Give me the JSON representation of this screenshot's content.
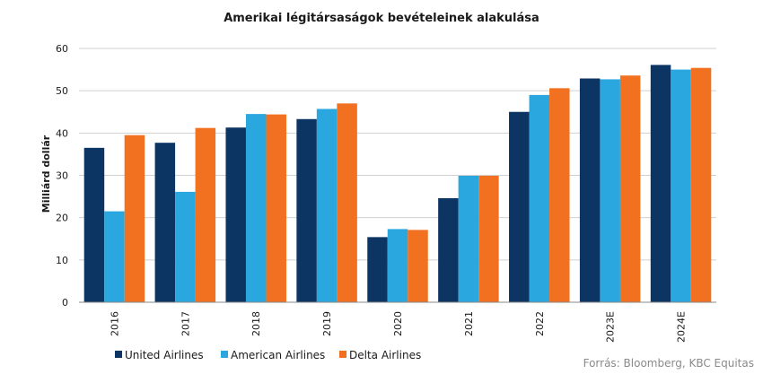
{
  "chart_data": {
    "type": "bar",
    "title": "Amerikai légitársaságok bevételeinek  alakulása",
    "ylabel": "Milliárd dollár",
    "xlabel": "",
    "ylim": [
      0,
      60
    ],
    "yticks": [
      "0",
      "10",
      "20",
      "30",
      "40",
      "50",
      "60"
    ],
    "grid": true,
    "legend_position": "bottom-left",
    "categories": [
      "2016",
      "2017",
      "2018",
      "2019",
      "2020",
      "2021",
      "2022",
      "2023E",
      "2024E"
    ],
    "series": [
      {
        "name": "United Airlines",
        "color": "#0d3564",
        "values": [
          36.5,
          37.7,
          41.3,
          43.3,
          15.4,
          24.6,
          45.0,
          52.9,
          56.1
        ]
      },
      {
        "name": "American Airlines",
        "color": "#2aa7df",
        "values": [
          21.5,
          26.1,
          44.5,
          45.7,
          17.3,
          29.9,
          49.0,
          52.7,
          55.0
        ]
      },
      {
        "name": "Delta Airlines",
        "color": "#f27121",
        "values": [
          39.5,
          41.2,
          44.4,
          47.0,
          17.1,
          29.9,
          50.6,
          53.6,
          55.4
        ]
      }
    ],
    "source": "Forrás: Bloomberg,  KBC Equitas"
  }
}
